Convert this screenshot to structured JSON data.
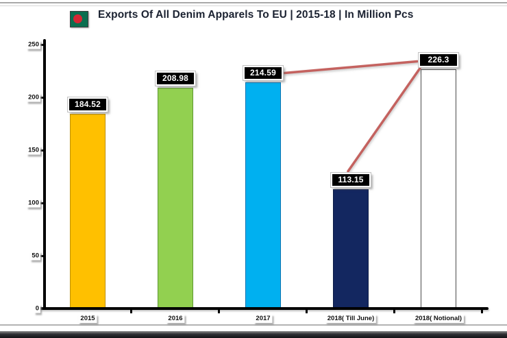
{
  "title_bar": {
    "title": "Exports Of All Denim Apparels To EU | 2015-18 | In Million Pcs",
    "flag_icon": "bangladesh-flag"
  },
  "colors": {
    "title_text": "#1A2130",
    "axis": "#000000",
    "value_label_bg": "#000000",
    "value_label_text": "#FFFFFF",
    "trend_line": "#C0504D",
    "flag_green": "#0B6E4F",
    "flag_red": "#D62633"
  },
  "chart_data": {
    "type": "bar",
    "title": "Exports Of All Denim Apparels To EU | 2015-18 | In Million Pcs",
    "categories": [
      "2015",
      "2016",
      "2017",
      "2018( Till June)",
      "2018( Notional)"
    ],
    "values": [
      184.52,
      208.98,
      214.59,
      113.15,
      226.3
    ],
    "value_labels": [
      "184.52",
      "208.98",
      "214.59",
      "113.15",
      "226.3"
    ],
    "bar_colors": [
      "#FFC000",
      "#92D050",
      "#00B0F0",
      "#132760",
      "#FFFFFF"
    ],
    "bar_border_colors": [
      "#BE8F00",
      "#5E9732",
      "#0D72B0",
      "#0B1B45",
      "#4A4A4A"
    ],
    "xlabel": "",
    "ylabel": "",
    "unit": "Million Pcs",
    "ylim": [
      0,
      250
    ],
    "yticks": [
      0,
      50,
      100,
      150,
      200,
      250
    ],
    "grid": false,
    "legend": "none",
    "trend_lines": {
      "color": "#C0504D",
      "connections": [
        {
          "from": "2017",
          "to": "2018( Notional)"
        },
        {
          "from": "2018( Till June)",
          "to": "2018( Notional)"
        }
      ]
    }
  }
}
